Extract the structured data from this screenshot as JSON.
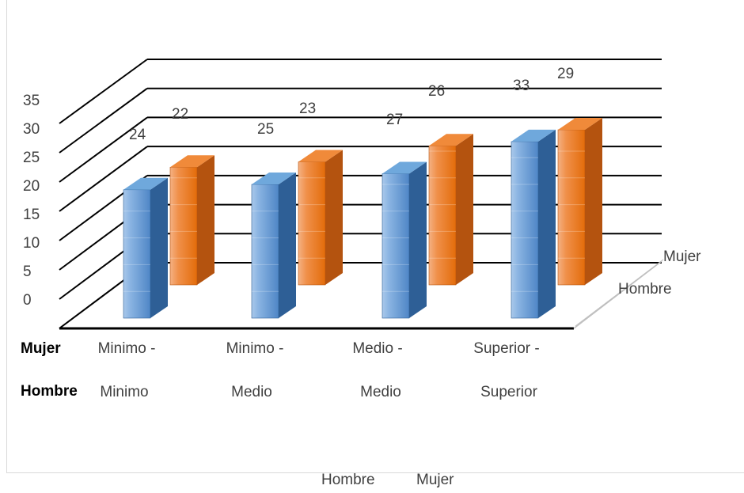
{
  "chart_data": {
    "type": "bar",
    "subtype": "3d-clustered-column",
    "title": "",
    "categories": [
      [
        "Minimo -",
        "Minimo"
      ],
      [
        "Minimo -",
        "Medio"
      ],
      [
        "Medio -",
        "Medio"
      ],
      [
        "Superior -",
        "Superior"
      ]
    ],
    "category_row_labels": [
      "Mujer",
      "Hombre"
    ],
    "series": [
      {
        "name": "Hombre",
        "values": [
          24,
          25,
          27,
          33
        ],
        "color": "#5b9bd5"
      },
      {
        "name": "Mujer",
        "values": [
          22,
          23,
          26,
          29
        ],
        "color": "#ed7d31"
      }
    ],
    "depth_axis_labels": [
      "Mujer",
      "Hombre"
    ],
    "yticks": [
      "0",
      "5",
      "10",
      "15",
      "20",
      "25",
      "30",
      "35"
    ],
    "ylim": [
      0,
      35
    ],
    "grid": true,
    "legend_position": "bottom",
    "legend": [
      "Hombre",
      "Mujer"
    ]
  }
}
